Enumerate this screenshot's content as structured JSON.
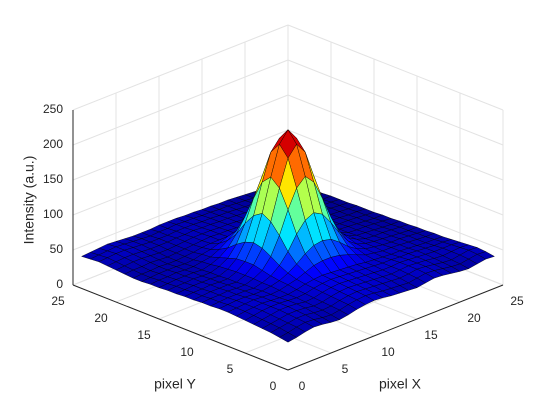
{
  "chart_data": {
    "type": "surface",
    "xlabel": "pixel X",
    "ylabel": "pixel Y",
    "zlabel": "Intensity (a.u.)",
    "x": [
      1,
      2,
      3,
      4,
      5,
      6,
      7,
      8,
      9,
      10,
      11,
      12,
      13,
      14,
      15,
      16,
      17,
      18,
      19,
      20,
      21,
      22,
      23,
      24,
      25
    ],
    "y": [
      1,
      2,
      3,
      4,
      5,
      6,
      7,
      8,
      9,
      10,
      11,
      12,
      13,
      14,
      15,
      16,
      17,
      18,
      19,
      20,
      21,
      22,
      23,
      24,
      25
    ],
    "z": [
      [
        30,
        32,
        35,
        37,
        36,
        34,
        33,
        35,
        38,
        40,
        41,
        40,
        38,
        37,
        36,
        35,
        37,
        39,
        38,
        36,
        34,
        33,
        35,
        37,
        36
      ],
      [
        32,
        34,
        37,
        39,
        38,
        36,
        35,
        37,
        40,
        42,
        43,
        42,
        40,
        39,
        38,
        37,
        39,
        41,
        40,
        38,
        36,
        35,
        37,
        39,
        38
      ],
      [
        34,
        36,
        38,
        40,
        40,
        38,
        37,
        38,
        41,
        43,
        44,
        43,
        42,
        41,
        40,
        39,
        40,
        42,
        41,
        39,
        37,
        36,
        38,
        40,
        39
      ],
      [
        35,
        37,
        39,
        41,
        41,
        40,
        38,
        39,
        42,
        44,
        45,
        44,
        43,
        42,
        41,
        40,
        41,
        42,
        41,
        40,
        38,
        37,
        38,
        39,
        38
      ],
      [
        36,
        38,
        40,
        42,
        42,
        41,
        39,
        40,
        43,
        45,
        46,
        45,
        44,
        43,
        42,
        41,
        41,
        42,
        41,
        40,
        39,
        38,
        38,
        38,
        37
      ],
      [
        37,
        39,
        41,
        42,
        42,
        41,
        40,
        41,
        44,
        46,
        47,
        46,
        45,
        44,
        43,
        42,
        41,
        41,
        40,
        40,
        39,
        38,
        37,
        37,
        36
      ],
      [
        38,
        40,
        41,
        42,
        41,
        40,
        40,
        42,
        45,
        47,
        48,
        47,
        46,
        45,
        44,
        42,
        41,
        40,
        39,
        39,
        38,
        37,
        36,
        36,
        35
      ],
      [
        39,
        40,
        41,
        42,
        41,
        40,
        41,
        44,
        47,
        52,
        57,
        59,
        59,
        57,
        53,
        48,
        43,
        41,
        39,
        39,
        38,
        37,
        36,
        35,
        35
      ],
      [
        39,
        40,
        41,
        41,
        40,
        40,
        42,
        45,
        51,
        59,
        69,
        76,
        78,
        75,
        66,
        55,
        47,
        42,
        40,
        38,
        37,
        37,
        36,
        35,
        34
      ],
      [
        38,
        39,
        40,
        40,
        40,
        39,
        42,
        47,
        57,
        72,
        92,
        107,
        113,
        106,
        89,
        69,
        53,
        44,
        40,
        38,
        37,
        36,
        35,
        34,
        34
      ],
      [
        38,
        39,
        39,
        40,
        39,
        39,
        43,
        50,
        65,
        90,
        122,
        148,
        160,
        147,
        119,
        87,
        62,
        48,
        41,
        37,
        36,
        36,
        35,
        34,
        33
      ],
      [
        37,
        38,
        39,
        39,
        39,
        38,
        43,
        53,
        72,
        105,
        148,
        186,
        201,
        185,
        146,
        103,
        70,
        50,
        41,
        37,
        36,
        35,
        34,
        33,
        33
      ],
      [
        37,
        38,
        38,
        39,
        38,
        38,
        43,
        53,
        75,
        112,
        159,
        201,
        217,
        200,
        157,
        109,
        72,
        51,
        41,
        36,
        35,
        35,
        34,
        33,
        32
      ],
      [
        36,
        37,
        38,
        38,
        38,
        37,
        42,
        52,
        71,
        104,
        147,
        185,
        200,
        184,
        145,
        102,
        69,
        49,
        40,
        36,
        35,
        34,
        33,
        32,
        32
      ],
      [
        36,
        37,
        37,
        38,
        37,
        37,
        41,
        48,
        63,
        88,
        119,
        146,
        157,
        145,
        117,
        85,
        60,
        46,
        39,
        35,
        34,
        34,
        33,
        32,
        31
      ],
      [
        35,
        36,
        37,
        37,
        37,
        36,
        39,
        44,
        53,
        68,
        88,
        103,
        110,
        102,
        86,
        66,
        51,
        41,
        37,
        35,
        34,
        33,
        32,
        32,
        31
      ],
      [
        35,
        36,
        36,
        37,
        36,
        36,
        38,
        40,
        46,
        54,
        63,
        71,
        73,
        70,
        61,
        51,
        43,
        38,
        36,
        34,
        34,
        33,
        32,
        31,
        31
      ],
      [
        34,
        35,
        36,
        36,
        36,
        35,
        36,
        39,
        41,
        45,
        50,
        52,
        53,
        51,
        48,
        43,
        38,
        36,
        34,
        34,
        33,
        32,
        32,
        31,
        30
      ],
      [
        34,
        35,
        35,
        36,
        35,
        35,
        36,
        37,
        39,
        40,
        40,
        40,
        39,
        39,
        38,
        37,
        36,
        35,
        34,
        33,
        33,
        32,
        31,
        31,
        30
      ],
      [
        35,
        36,
        36,
        37,
        36,
        35,
        36,
        37,
        38,
        39,
        40,
        39,
        39,
        38,
        38,
        37,
        36,
        35,
        34,
        33,
        32,
        32,
        31,
        30,
        30
      ],
      [
        36,
        37,
        38,
        38,
        37,
        36,
        36,
        37,
        38,
        39,
        39,
        39,
        38,
        38,
        37,
        36,
        36,
        35,
        34,
        33,
        32,
        31,
        31,
        30,
        29
      ],
      [
        37,
        38,
        39,
        39,
        38,
        37,
        37,
        37,
        38,
        38,
        39,
        38,
        38,
        37,
        37,
        36,
        35,
        35,
        34,
        33,
        32,
        31,
        30,
        30,
        29
      ],
      [
        38,
        39,
        40,
        40,
        39,
        38,
        37,
        37,
        37,
        38,
        38,
        38,
        37,
        37,
        36,
        36,
        35,
        34,
        34,
        33,
        32,
        31,
        30,
        29,
        29
      ],
      [
        37,
        38,
        39,
        40,
        39,
        38,
        37,
        36,
        37,
        37,
        38,
        37,
        37,
        36,
        36,
        35,
        35,
        34,
        33,
        32,
        31,
        31,
        30,
        29,
        28
      ],
      [
        36,
        37,
        38,
        39,
        38,
        37,
        36,
        36,
        36,
        37,
        37,
        37,
        36,
        36,
        35,
        35,
        34,
        34,
        33,
        32,
        31,
        30,
        30,
        29,
        28
      ]
    ],
    "xlim": [
      0,
      25
    ],
    "ylim": [
      0,
      25
    ],
    "zlim": [
      0,
      250
    ],
    "xticks": [
      0,
      5,
      10,
      15,
      20,
      25
    ],
    "yticks": [
      0,
      5,
      10,
      15,
      20,
      25
    ],
    "zticks": [
      0,
      50,
      100,
      150,
      200,
      250
    ],
    "colormap": "jet",
    "edgecolor": "#000000",
    "grid": true
  }
}
